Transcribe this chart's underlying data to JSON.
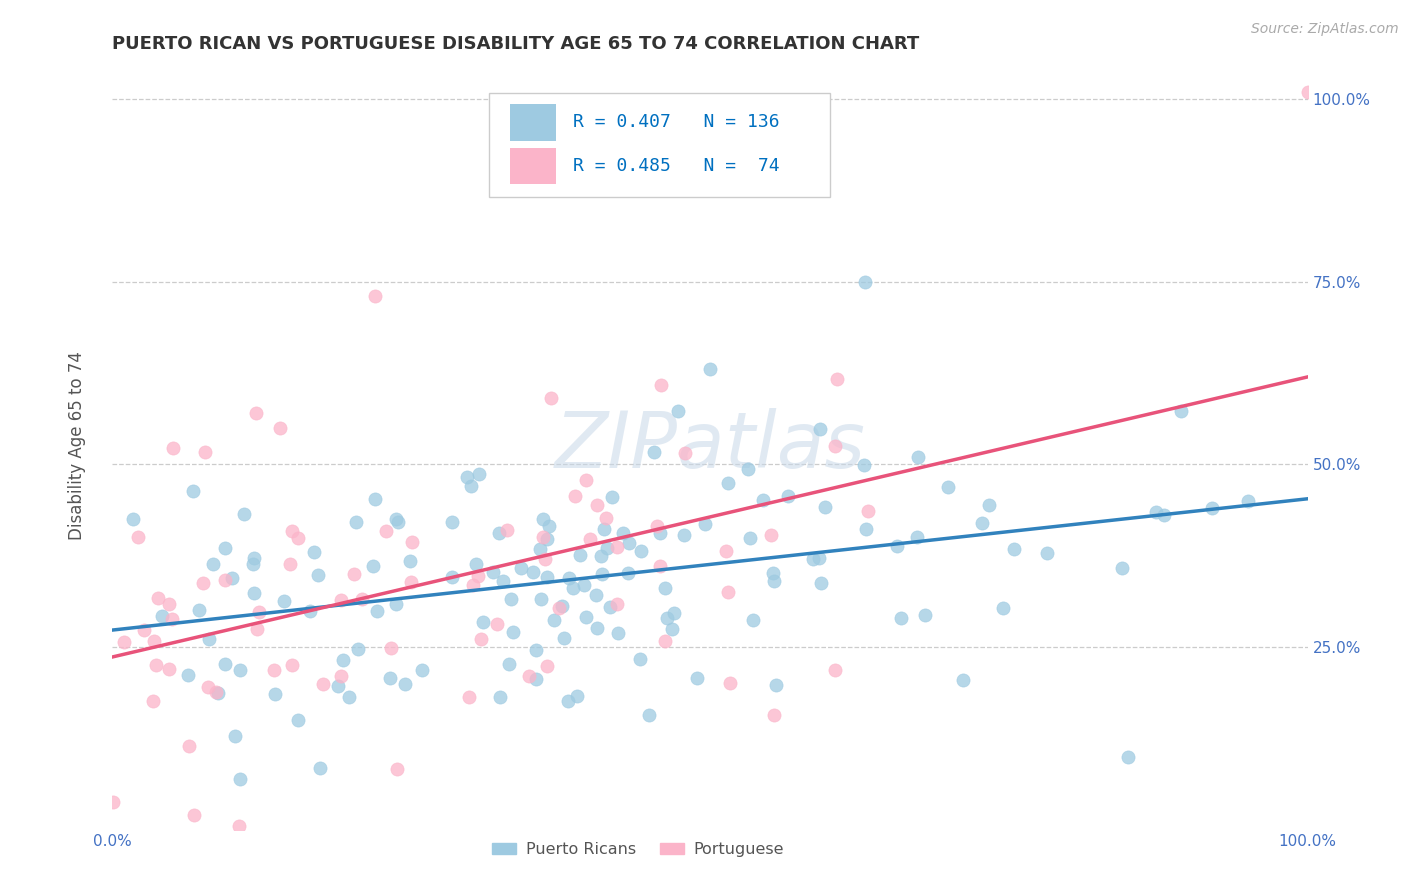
{
  "title": "PUERTO RICAN VS PORTUGUESE DISABILITY AGE 65 TO 74 CORRELATION CHART",
  "source": "Source: ZipAtlas.com",
  "ylabel": "Disability Age 65 to 74",
  "xlim": [
    0.0,
    1.0
  ],
  "ylim": [
    0.0,
    1.05
  ],
  "y_tick_values": [
    0.25,
    0.5,
    0.75,
    1.0
  ],
  "y_tick_labels": [
    "25.0%",
    "50.0%",
    "75.0%",
    "100.0%"
  ],
  "pr_R": 0.407,
  "pr_N": 136,
  "pt_R": 0.485,
  "pt_N": 74,
  "blue_scatter_color": "#9ecae1",
  "pink_scatter_color": "#fbb4c9",
  "blue_line_color": "#3182bd",
  "pink_line_color": "#e8537a",
  "label_color": "#4472c4",
  "watermark": "ZIPatlas",
  "background_color": "#ffffff",
  "grid_color": "#cccccc",
  "legend_R_N_color": "#0070c0",
  "title_fontsize": 13,
  "tick_fontsize": 11
}
